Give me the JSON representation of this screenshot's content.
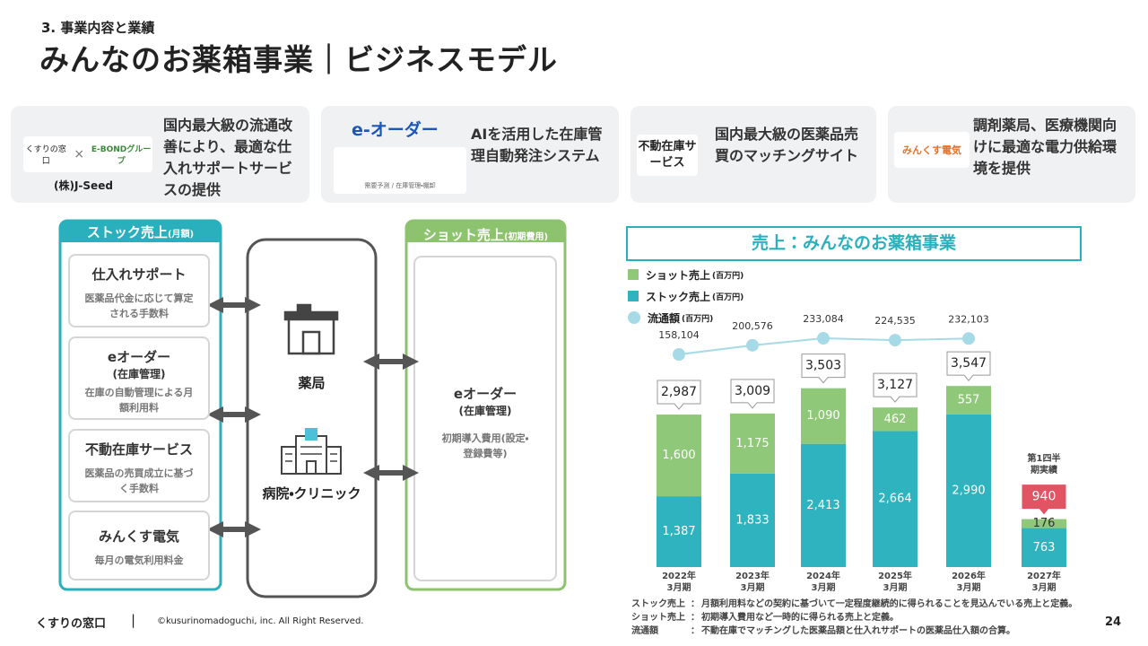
{
  "header": {
    "section": "3. 事業内容と業績",
    "title": "みんなのお薬箱事業｜ビジネスモデル"
  },
  "cards": [
    {
      "logos": [
        "くすりの窓口",
        "×",
        "E-BONDグループ"
      ],
      "caption": "(株)J-Seed",
      "text": "国内最大級の流通改善により、最適な仕入れサポートサービスの提供"
    },
    {
      "logos": [
        "e-オーダー",
        "需要予測 / 在庫管理・棚卸"
      ],
      "text": "AIを活用した在庫管理自動発注システム"
    },
    {
      "logos": [
        "不動在庫サービス"
      ],
      "text": "国内最大級の医薬品売買のマッチングサイト"
    },
    {
      "logos": [
        "みんくす電気"
      ],
      "text": "調剤薬局、医療機関向けに最適な電力供給環境を提供"
    }
  ],
  "diagram": {
    "stock": {
      "title": "ストック売上",
      "note": "(月額)",
      "items": [
        {
          "name": "仕入れサポート",
          "desc": "医薬品代金に応じて算定される手数料"
        },
        {
          "name": "eオーダー",
          "sub": "(在庫管理)",
          "desc": "在庫の自動管理による月額利用料"
        },
        {
          "name": "不動在庫サービス",
          "desc": "医薬品の売買成立に基づく手数料"
        },
        {
          "name": "みんくす電気",
          "desc": "毎月の電気利用料金"
        }
      ]
    },
    "center": [
      "薬局",
      "病院・クリニック"
    ],
    "shot": {
      "title": "ショット売上",
      "note": "(初期費用)",
      "name": "eオーダー",
      "sub": "(在庫管理)",
      "desc": "初期導入費用(設定・登録費等)"
    }
  },
  "chart_data": {
    "type": "bar",
    "stacked": true,
    "title": "売上：みんなのお薬箱事業",
    "categories": [
      "2022年3月期",
      "2023年3月期",
      "2024年3月期",
      "2025年3月期",
      "2026年3月期",
      "2027年3月期"
    ],
    "series": [
      {
        "name": "ショット売上",
        "unit": "(百万円)",
        "type": "bar",
        "color": "#8fc878",
        "values": [
          1600,
          1175,
          1090,
          462,
          557,
          176
        ],
        "value_labels": [
          "1,600",
          "1,175",
          "1,090",
          "462",
          "557",
          "176"
        ]
      },
      {
        "name": "ストック売上",
        "unit": "(百万円)",
        "type": "bar",
        "color": "#2fb3be",
        "values": [
          1387,
          1833,
          2413,
          2664,
          2990,
          763
        ],
        "value_labels": [
          "1,387",
          "1,833",
          "2,413",
          "2,664",
          "2,990",
          "763"
        ]
      },
      {
        "name": "流通額",
        "unit": "(百万円)",
        "type": "line",
        "color": "#a6dae6",
        "values": [
          158104,
          200576,
          233084,
          224535,
          232103,
          null
        ],
        "value_labels": [
          "158,104",
          "200,576",
          "233,084",
          "224,535",
          "232,103",
          null
        ]
      }
    ],
    "totals": {
      "values": [
        2987,
        3009,
        3503,
        3127,
        3547,
        940
      ],
      "value_labels": [
        "2,987",
        "3,009",
        "3,503",
        "3,127",
        "3,547",
        "940"
      ]
    },
    "annotation": "第1四半期実績"
  },
  "notes": [
    {
      "label": "ストック売上",
      "sep": "：",
      "text": "月額利用料などの契約に基づいて一定程度継続的に得られることを見込んでいる売上と定義。"
    },
    {
      "label": "ショット売上",
      "sep": "：",
      "text": "初期導入費用など一時的に得られる売上と定義。"
    },
    {
      "label": "流通額",
      "sep": "：",
      "text": "不動在庫でマッチングした医薬品額と仕入れサポートの医薬品仕入額の合算。"
    }
  ],
  "footer": {
    "logo": "くすりの窓口",
    "divider": "|",
    "copyright": "©kusurinomadoguchi, inc. All Right Reserved.",
    "page": "24"
  }
}
